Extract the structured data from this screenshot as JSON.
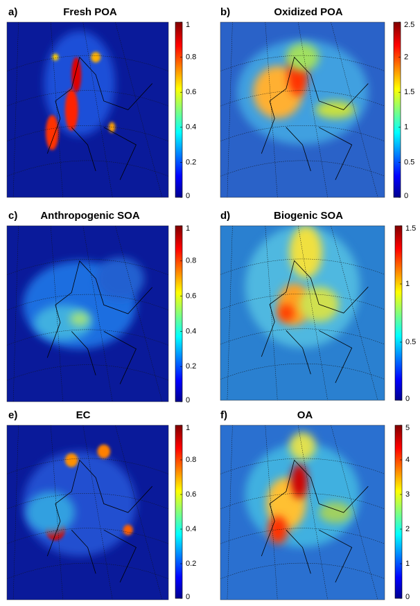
{
  "panels": [
    {
      "label": "a)",
      "title": "Fresh POA",
      "colorbar": {
        "lim": [
          0,
          1
        ],
        "ticks": [
          0,
          0.2,
          0.4,
          0.6,
          0.8,
          1
        ]
      }
    },
    {
      "label": "b)",
      "title": "Oxidized POA",
      "colorbar": {
        "lim": [
          0,
          2.5
        ],
        "ticks": [
          0,
          0.5,
          1,
          1.5,
          2,
          2.5
        ]
      }
    },
    {
      "label": "c)",
      "title": "Anthropogenic SOA",
      "colorbar": {
        "lim": [
          0,
          1
        ],
        "ticks": [
          0,
          0.2,
          0.4,
          0.6,
          0.8,
          1
        ]
      }
    },
    {
      "label": "d)",
      "title": "Biogenic SOA",
      "colorbar": {
        "lim": [
          0,
          1.5
        ],
        "ticks": [
          0,
          0.5,
          1,
          1.5
        ]
      }
    },
    {
      "label": "e)",
      "title": "EC",
      "colorbar": {
        "lim": [
          0,
          1
        ],
        "ticks": [
          0,
          0.2,
          0.4,
          0.6,
          0.8,
          1
        ]
      }
    },
    {
      "label": "f)",
      "title": "OA",
      "colorbar": {
        "lim": [
          0,
          5
        ],
        "ticks": [
          0,
          1,
          2,
          3,
          4,
          5
        ]
      }
    }
  ]
}
